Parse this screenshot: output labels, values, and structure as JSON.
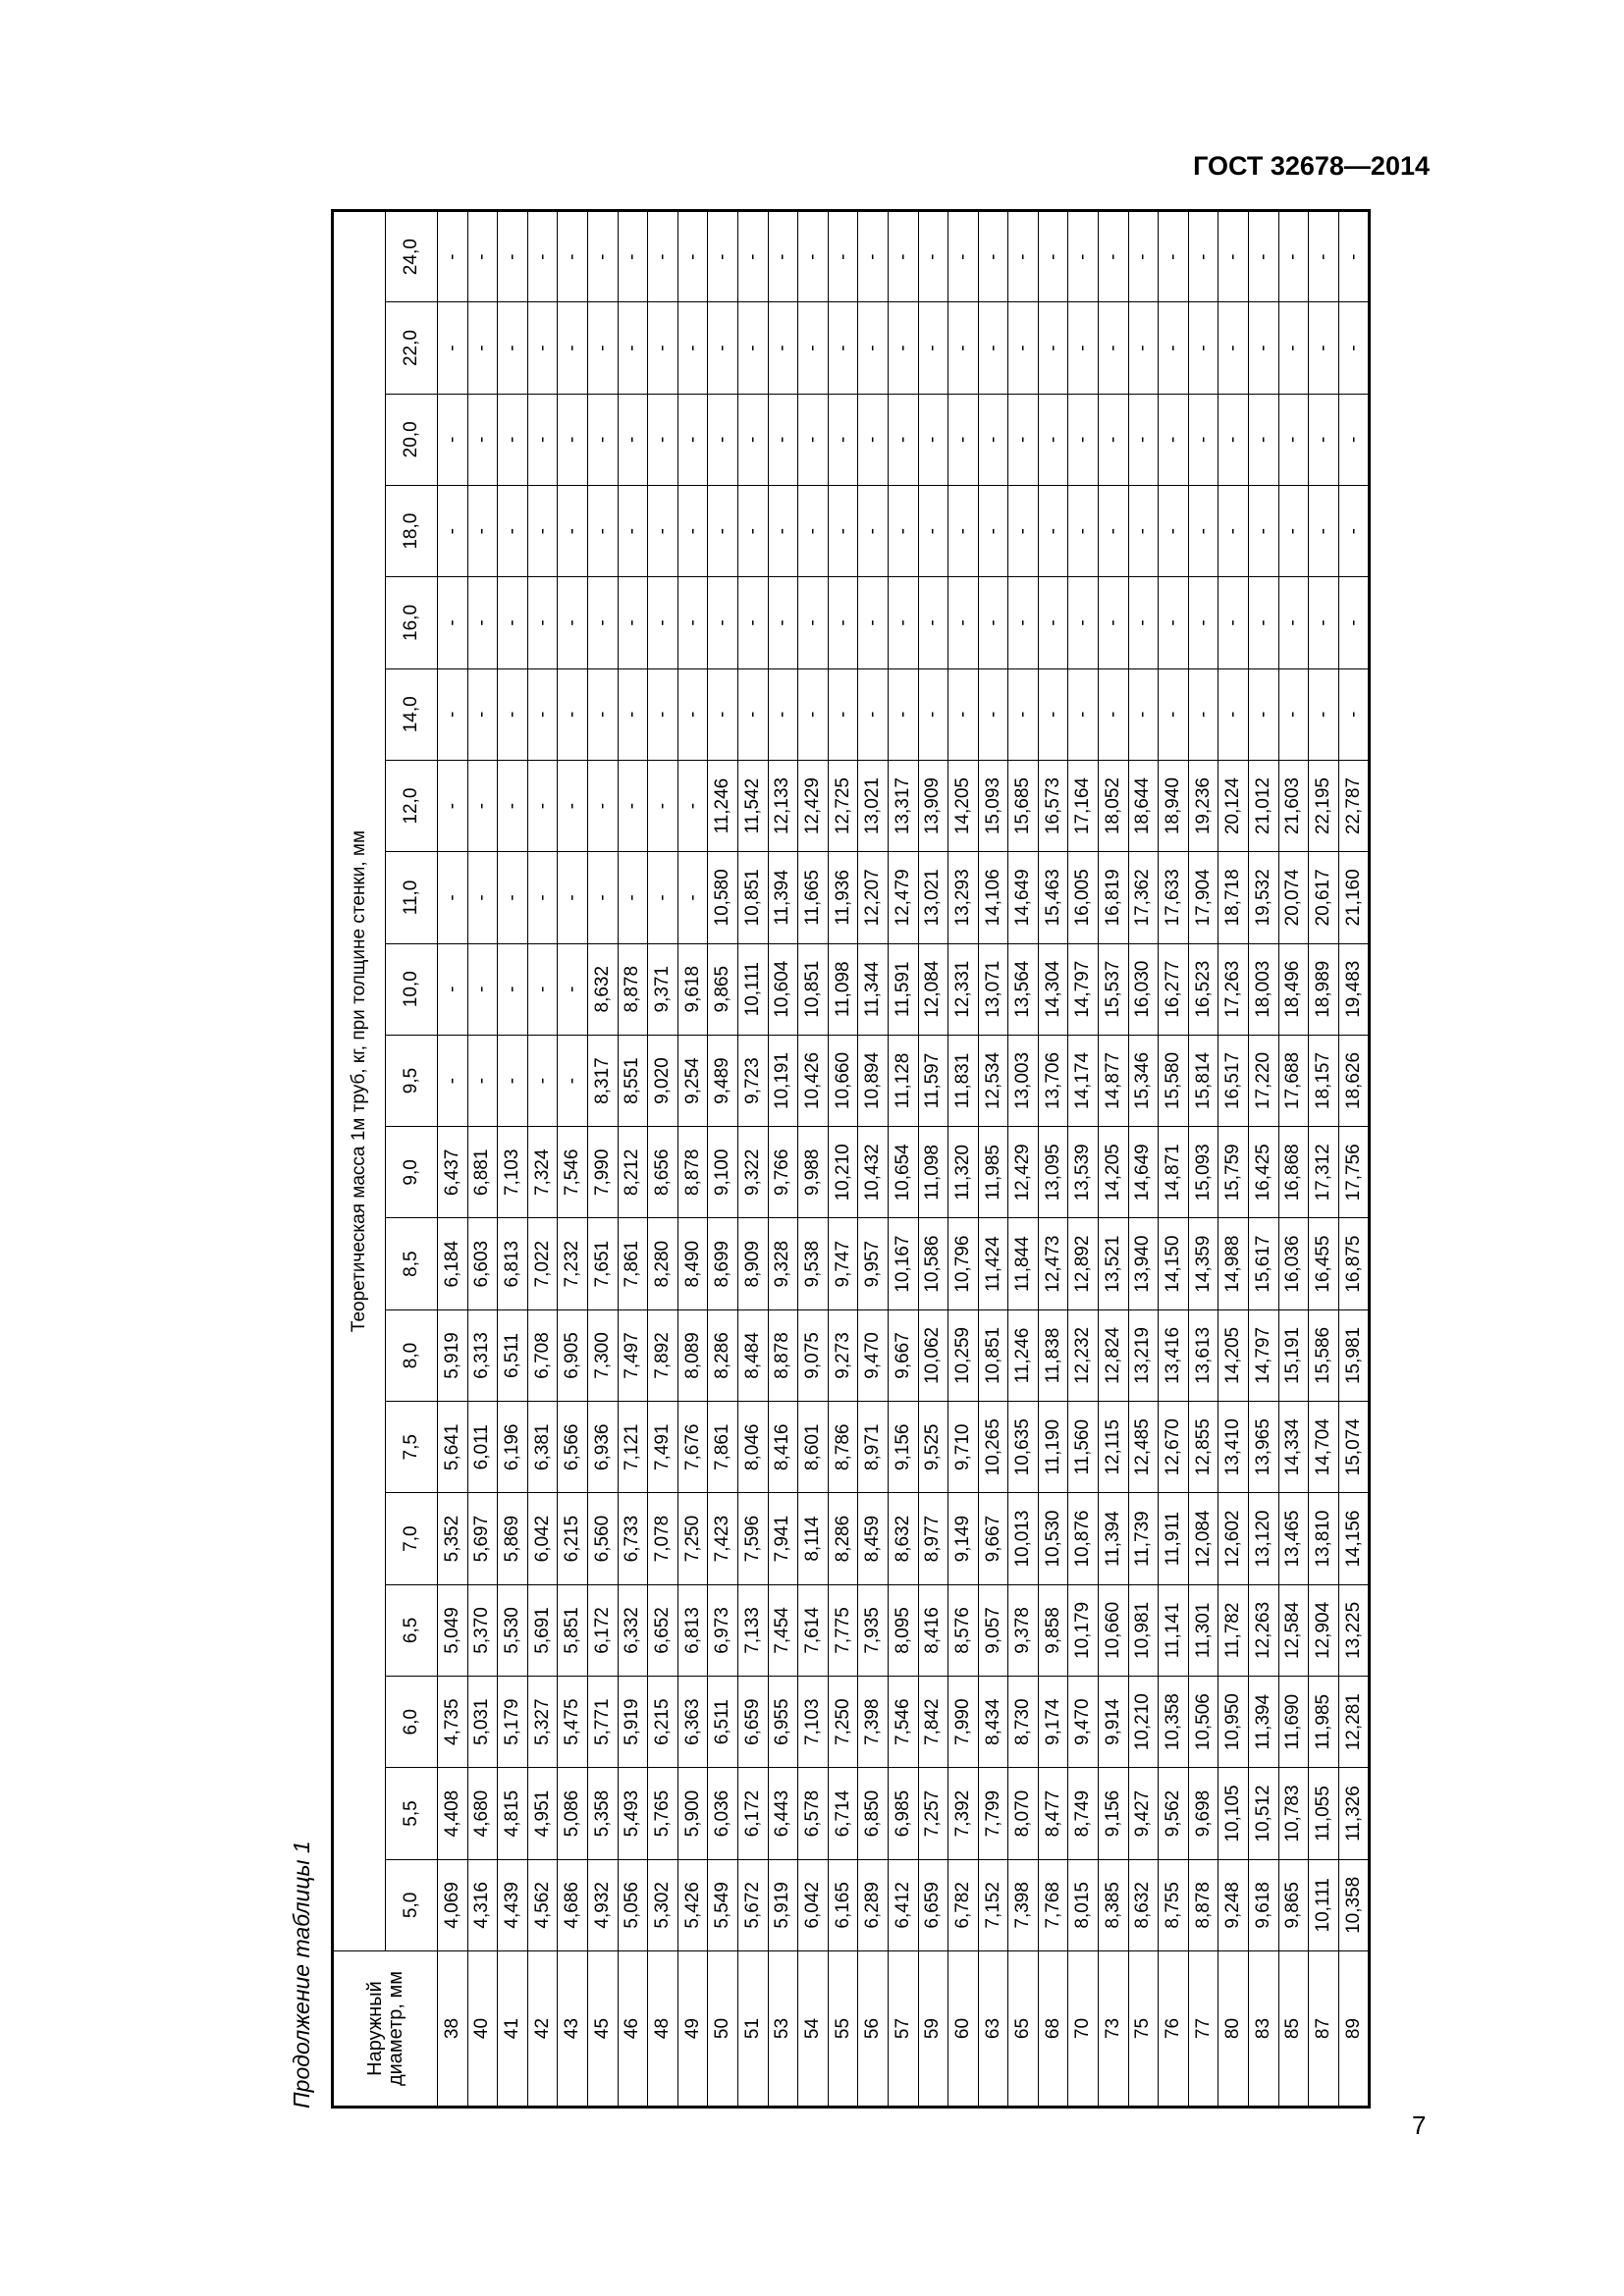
{
  "header": {
    "doc_code": "ГОСТ 32678—2014",
    "caption": "Продолжение таблицы 1"
  },
  "table": {
    "diameter_header": "Наружный диаметр, мм",
    "group_header": "Теоретическая масса 1м труб, кг, при толщине стенки, мм",
    "columns": [
      "5,0",
      "5,5",
      "6,0",
      "6,5",
      "7,0",
      "7,5",
      "8,0",
      "8,5",
      "9,0",
      "9,5",
      "10,0",
      "11,0",
      "12,0",
      "14,0",
      "16,0",
      "18,0",
      "20,0",
      "22,0",
      "24,0"
    ],
    "rows": [
      [
        "38",
        "4,069",
        "4,408",
        "4,735",
        "5,049",
        "5,352",
        "5,641",
        "5,919",
        "6,184",
        "6,437",
        "-",
        "-",
        "-",
        "-",
        "-",
        "-",
        "-",
        "-",
        "-",
        "-"
      ],
      [
        "40",
        "4,316",
        "4,680",
        "5,031",
        "5,370",
        "5,697",
        "6,011",
        "6,313",
        "6,603",
        "6,881",
        "-",
        "-",
        "-",
        "-",
        "-",
        "-",
        "-",
        "-",
        "-",
        "-"
      ],
      [
        "41",
        "4,439",
        "4,815",
        "5,179",
        "5,530",
        "5,869",
        "6,196",
        "6,511",
        "6,813",
        "7,103",
        "-",
        "-",
        "-",
        "-",
        "-",
        "-",
        "-",
        "-",
        "-",
        "-"
      ],
      [
        "42",
        "4,562",
        "4,951",
        "5,327",
        "5,691",
        "6,042",
        "6,381",
        "6,708",
        "7,022",
        "7,324",
        "-",
        "-",
        "-",
        "-",
        "-",
        "-",
        "-",
        "-",
        "-",
        "-"
      ],
      [
        "43",
        "4,686",
        "5,086",
        "5,475",
        "5,851",
        "6,215",
        "6,566",
        "6,905",
        "7,232",
        "7,546",
        "-",
        "-",
        "-",
        "-",
        "-",
        "-",
        "-",
        "-",
        "-",
        "-"
      ],
      [
        "45",
        "4,932",
        "5,358",
        "5,771",
        "6,172",
        "6,560",
        "6,936",
        "7,300",
        "7,651",
        "7,990",
        "8,317",
        "8,632",
        "-",
        "-",
        "-",
        "-",
        "-",
        "-",
        "-",
        "-"
      ],
      [
        "46",
        "5,056",
        "5,493",
        "5,919",
        "6,332",
        "6,733",
        "7,121",
        "7,497",
        "7,861",
        "8,212",
        "8,551",
        "8,878",
        "-",
        "-",
        "-",
        "-",
        "-",
        "-",
        "-",
        "-"
      ],
      [
        "48",
        "5,302",
        "5,765",
        "6,215",
        "6,652",
        "7,078",
        "7,491",
        "7,892",
        "8,280",
        "8,656",
        "9,020",
        "9,371",
        "-",
        "-",
        "-",
        "-",
        "-",
        "-",
        "-",
        "-"
      ],
      [
        "49",
        "5,426",
        "5,900",
        "6,363",
        "6,813",
        "7,250",
        "7,676",
        "8,089",
        "8,490",
        "8,878",
        "9,254",
        "9,618",
        "-",
        "-",
        "-",
        "-",
        "-",
        "-",
        "-",
        "-"
      ],
      [
        "50",
        "5,549",
        "6,036",
        "6,511",
        "6,973",
        "7,423",
        "7,861",
        "8,286",
        "8,699",
        "9,100",
        "9,489",
        "9,865",
        "10,580",
        "11,246",
        "-",
        "-",
        "-",
        "-",
        "-",
        "-"
      ],
      [
        "51",
        "5,672",
        "6,172",
        "6,659",
        "7,133",
        "7,596",
        "8,046",
        "8,484",
        "8,909",
        "9,322",
        "9,723",
        "10,111",
        "10,851",
        "11,542",
        "-",
        "-",
        "-",
        "-",
        "-",
        "-"
      ],
      [
        "53",
        "5,919",
        "6,443",
        "6,955",
        "7,454",
        "7,941",
        "8,416",
        "8,878",
        "9,328",
        "9,766",
        "10,191",
        "10,604",
        "11,394",
        "12,133",
        "-",
        "-",
        "-",
        "-",
        "-",
        "-"
      ],
      [
        "54",
        "6,042",
        "6,578",
        "7,103",
        "7,614",
        "8,114",
        "8,601",
        "9,075",
        "9,538",
        "9,988",
        "10,426",
        "10,851",
        "11,665",
        "12,429",
        "-",
        "-",
        "-",
        "-",
        "-",
        "-"
      ],
      [
        "55",
        "6,165",
        "6,714",
        "7,250",
        "7,775",
        "8,286",
        "8,786",
        "9,273",
        "9,747",
        "10,210",
        "10,660",
        "11,098",
        "11,936",
        "12,725",
        "-",
        "-",
        "-",
        "-",
        "-",
        "-"
      ],
      [
        "56",
        "6,289",
        "6,850",
        "7,398",
        "7,935",
        "8,459",
        "8,971",
        "9,470",
        "9,957",
        "10,432",
        "10,894",
        "11,344",
        "12,207",
        "13,021",
        "-",
        "-",
        "-",
        "-",
        "-",
        "-"
      ],
      [
        "57",
        "6,412",
        "6,985",
        "7,546",
        "8,095",
        "8,632",
        "9,156",
        "9,667",
        "10,167",
        "10,654",
        "11,128",
        "11,591",
        "12,479",
        "13,317",
        "-",
        "-",
        "-",
        "-",
        "-",
        "-"
      ],
      [
        "59",
        "6,659",
        "7,257",
        "7,842",
        "8,416",
        "8,977",
        "9,525",
        "10,062",
        "10,586",
        "11,098",
        "11,597",
        "12,084",
        "13,021",
        "13,909",
        "-",
        "-",
        "-",
        "-",
        "-",
        "-"
      ],
      [
        "60",
        "6,782",
        "7,392",
        "7,990",
        "8,576",
        "9,149",
        "9,710",
        "10,259",
        "10,796",
        "11,320",
        "11,831",
        "12,331",
        "13,293",
        "14,205",
        "-",
        "-",
        "-",
        "-",
        "-",
        "-"
      ],
      [
        "63",
        "7,152",
        "7,799",
        "8,434",
        "9,057",
        "9,667",
        "10,265",
        "10,851",
        "11,424",
        "11,985",
        "12,534",
        "13,071",
        "14,106",
        "15,093",
        "-",
        "-",
        "-",
        "-",
        "-",
        "-"
      ],
      [
        "65",
        "7,398",
        "8,070",
        "8,730",
        "9,378",
        "10,013",
        "10,635",
        "11,246",
        "11,844",
        "12,429",
        "13,003",
        "13,564",
        "14,649",
        "15,685",
        "-",
        "-",
        "-",
        "-",
        "-",
        "-"
      ],
      [
        "68",
        "7,768",
        "8,477",
        "9,174",
        "9,858",
        "10,530",
        "11,190",
        "11,838",
        "12,473",
        "13,095",
        "13,706",
        "14,304",
        "15,463",
        "16,573",
        "-",
        "-",
        "-",
        "-",
        "-",
        "-"
      ],
      [
        "70",
        "8,015",
        "8,749",
        "9,470",
        "10,179",
        "10,876",
        "11,560",
        "12,232",
        "12,892",
        "13,539",
        "14,174",
        "14,797",
        "16,005",
        "17,164",
        "-",
        "-",
        "-",
        "-",
        "-",
        "-"
      ],
      [
        "73",
        "8,385",
        "9,156",
        "9,914",
        "10,660",
        "11,394",
        "12,115",
        "12,824",
        "13,521",
        "14,205",
        "14,877",
        "15,537",
        "16,819",
        "18,052",
        "-",
        "-",
        "-",
        "-",
        "-",
        "-"
      ],
      [
        "75",
        "8,632",
        "9,427",
        "10,210",
        "10,981",
        "11,739",
        "12,485",
        "13,219",
        "13,940",
        "14,649",
        "15,346",
        "16,030",
        "17,362",
        "18,644",
        "-",
        "-",
        "-",
        "-",
        "-",
        "-"
      ],
      [
        "76",
        "8,755",
        "9,562",
        "10,358",
        "11,141",
        "11,911",
        "12,670",
        "13,416",
        "14,150",
        "14,871",
        "15,580",
        "16,277",
        "17,633",
        "18,940",
        "-",
        "-",
        "-",
        "-",
        "-",
        "-"
      ],
      [
        "77",
        "8,878",
        "9,698",
        "10,506",
        "11,301",
        "12,084",
        "12,855",
        "13,613",
        "14,359",
        "15,093",
        "15,814",
        "16,523",
        "17,904",
        "19,236",
        "-",
        "-",
        "-",
        "-",
        "-",
        "-"
      ],
      [
        "80",
        "9,248",
        "10,105",
        "10,950",
        "11,782",
        "12,602",
        "13,410",
        "14,205",
        "14,988",
        "15,759",
        "16,517",
        "17,263",
        "18,718",
        "20,124",
        "-",
        "-",
        "-",
        "-",
        "-",
        "-"
      ],
      [
        "83",
        "9,618",
        "10,512",
        "11,394",
        "12,263",
        "13,120",
        "13,965",
        "14,797",
        "15,617",
        "16,425",
        "17,220",
        "18,003",
        "19,532",
        "21,012",
        "-",
        "-",
        "-",
        "-",
        "-",
        "-"
      ],
      [
        "85",
        "9,865",
        "10,783",
        "11,690",
        "12,584",
        "13,465",
        "14,334",
        "15,191",
        "16,036",
        "16,868",
        "17,688",
        "18,496",
        "20,074",
        "21,603",
        "-",
        "-",
        "-",
        "-",
        "-",
        "-"
      ],
      [
        "87",
        "10,111",
        "11,055",
        "11,985",
        "12,904",
        "13,810",
        "14,704",
        "15,586",
        "16,455",
        "17,312",
        "18,157",
        "18,989",
        "20,617",
        "22,195",
        "-",
        "-",
        "-",
        "-",
        "-",
        "-"
      ],
      [
        "89",
        "10,358",
        "11,326",
        "12,281",
        "13,225",
        "14,156",
        "15,074",
        "15,981",
        "16,875",
        "17,756",
        "18,626",
        "19,483",
        "21,160",
        "22,787",
        "-",
        "-",
        "-",
        "-",
        "-",
        "-"
      ]
    ]
  },
  "page_number": "7"
}
